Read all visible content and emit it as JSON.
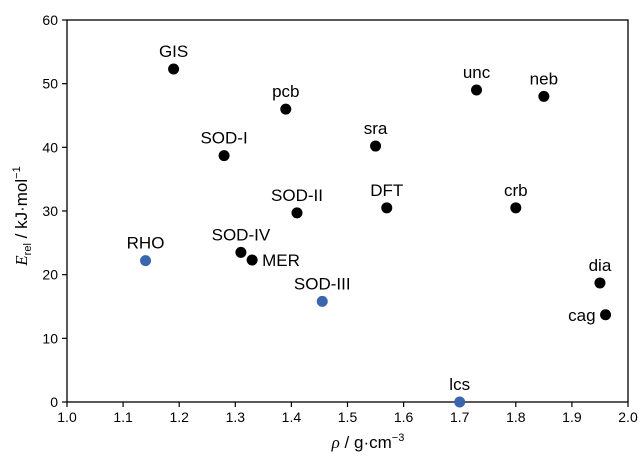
{
  "chart_data": {
    "type": "scatter",
    "xlabel": {
      "symbol": "ρ",
      "unit": " / g·cm",
      "unit_exp": "−3"
    },
    "ylabel": {
      "symbol": "E",
      "sub": "rel",
      "unit": " / kJ·mol",
      "unit_exp": "−1"
    },
    "xlim": [
      1.0,
      2.0
    ],
    "ylim": [
      0,
      60
    ],
    "x_ticks": [
      1.0,
      1.1,
      1.2,
      1.3,
      1.4,
      1.5,
      1.6,
      1.7,
      1.8,
      1.9,
      2.0
    ],
    "x_tick_labels": [
      "1.0",
      "1.1",
      "1.2",
      "1.3",
      "1.4",
      "1.5",
      "1.6",
      "1.7",
      "1.8",
      "1.9",
      "2.0"
    ],
    "y_ticks": [
      0,
      10,
      20,
      30,
      40,
      50,
      60
    ],
    "y_tick_labels": [
      "0",
      "10",
      "20",
      "30",
      "40",
      "50",
      "60"
    ],
    "grid": false,
    "colors": {
      "black": "#000000",
      "blue": "#3a66ad"
    },
    "points": [
      {
        "label": "GIS",
        "x": 1.19,
        "y": 52.3,
        "color": "black",
        "label_pos": "above"
      },
      {
        "label": "pcb",
        "x": 1.39,
        "y": 46.0,
        "color": "black",
        "label_pos": "above"
      },
      {
        "label": "unc",
        "x": 1.73,
        "y": 49.0,
        "color": "black",
        "label_pos": "above"
      },
      {
        "label": "neb",
        "x": 1.85,
        "y": 48.0,
        "color": "black",
        "label_pos": "above"
      },
      {
        "label": "SOD-I",
        "x": 1.28,
        "y": 38.7,
        "color": "black",
        "label_pos": "above"
      },
      {
        "label": "sra",
        "x": 1.55,
        "y": 40.2,
        "color": "black",
        "label_pos": "above"
      },
      {
        "label": "SOD-II",
        "x": 1.41,
        "y": 29.7,
        "color": "black",
        "label_pos": "above"
      },
      {
        "label": "DFT",
        "x": 1.57,
        "y": 30.5,
        "color": "black",
        "label_pos": "above"
      },
      {
        "label": "crb",
        "x": 1.8,
        "y": 30.5,
        "color": "black",
        "label_pos": "above"
      },
      {
        "label": "RHO",
        "x": 1.14,
        "y": 22.2,
        "color": "blue",
        "label_pos": "above"
      },
      {
        "label": "SOD-IV",
        "x": 1.31,
        "y": 23.5,
        "color": "black",
        "label_pos": "above"
      },
      {
        "label": "MER",
        "x": 1.33,
        "y": 22.3,
        "color": "black",
        "label_pos": "right"
      },
      {
        "label": "SOD-III",
        "x": 1.455,
        "y": 15.8,
        "color": "blue",
        "label_pos": "above"
      },
      {
        "label": "dia",
        "x": 1.95,
        "y": 18.7,
        "color": "black",
        "label_pos": "above"
      },
      {
        "label": "cag",
        "x": 1.96,
        "y": 13.7,
        "color": "black",
        "label_pos": "left"
      },
      {
        "label": "lcs",
        "x": 1.7,
        "y": 0.0,
        "color": "blue",
        "label_pos": "above"
      }
    ]
  }
}
